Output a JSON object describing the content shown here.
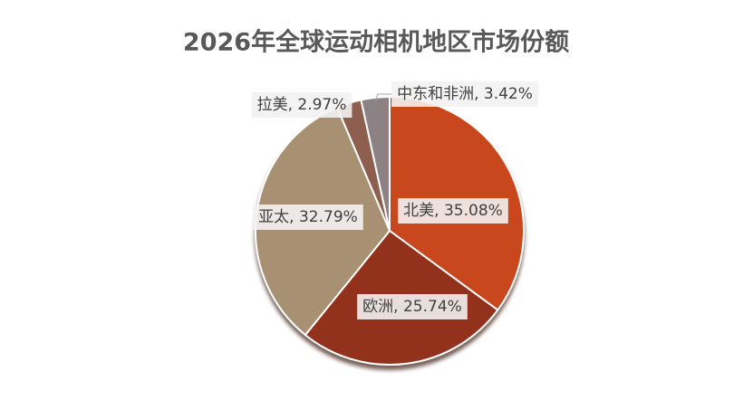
{
  "chart_data": {
    "type": "pie",
    "title": "2026年全球运动相机地区市场份额",
    "values": [
      35.08,
      25.74,
      32.79,
      2.97,
      3.42
    ],
    "value_labels": [
      "北美, 35.08%",
      "欧洲, 25.74%",
      "亚太, 32.79%",
      "拉美, 2.97%",
      "中东和非洲, 3.42%"
    ],
    "colors": [
      "#c8461a",
      "#93301f",
      "#a89072",
      "#8e5e4f",
      "#8c8184"
    ]
  }
}
